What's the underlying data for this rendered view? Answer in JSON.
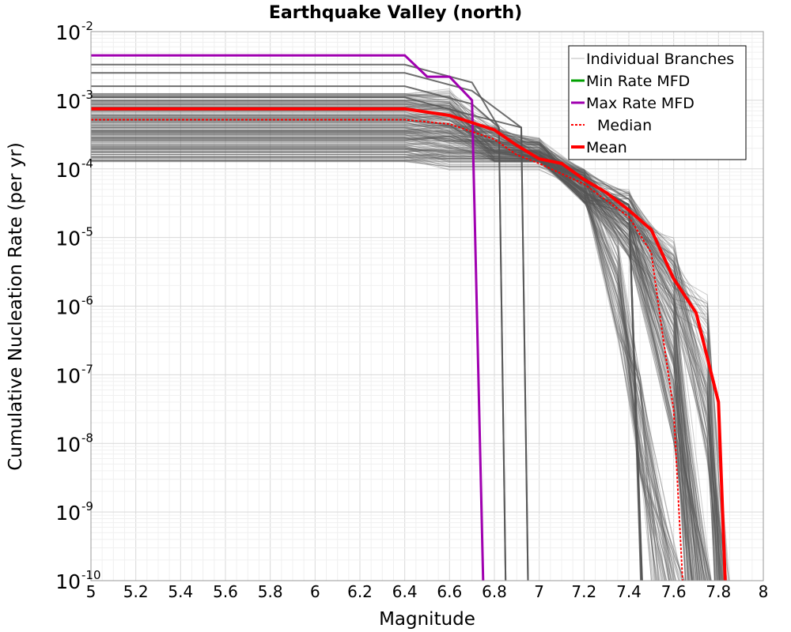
{
  "chart_data": {
    "type": "line",
    "title": "Earthquake Valley (north)",
    "xlabel": "Magnitude",
    "ylabel": "Cumulative Nucleation Rate (per yr)",
    "xlim": [
      5,
      8
    ],
    "ylim_exponents": [
      -10,
      -2
    ],
    "y_scale": "log",
    "grid": true,
    "legend_position": "top-right",
    "x_ticks": [
      "5",
      "5.2",
      "5.4",
      "5.6",
      "5.8",
      "6",
      "6.2",
      "6.4",
      "6.6",
      "6.8",
      "7",
      "7.2",
      "7.4",
      "7.6",
      "7.8",
      "8"
    ],
    "y_tick_base": "10",
    "y_tick_exponents": [
      "-2",
      "-3",
      "-4",
      "-5",
      "-6",
      "-7",
      "-8",
      "-9",
      "-10"
    ],
    "colors": {
      "branches": "#555555",
      "min": "#00a000",
      "max": "#a000b0",
      "median": "#ff0000",
      "mean": "#ff0000"
    },
    "legend": [
      {
        "label": "Individual Branches",
        "key": "branches"
      },
      {
        "label": "Min Rate MFD",
        "key": "min"
      },
      {
        "label": "Max Rate MFD",
        "key": "max"
      },
      {
        "label": "Median",
        "key": "median"
      },
      {
        "label": "Mean",
        "key": "mean"
      }
    ],
    "series": [
      {
        "name": "Max Rate MFD",
        "key": "max",
        "x": [
          5.0,
          6.4,
          6.5,
          6.6,
          6.7,
          6.75
        ],
        "y": [
          0.0045,
          0.0045,
          0.0022,
          0.0022,
          0.001,
          1e-10
        ]
      },
      {
        "name": "Mean",
        "key": "mean",
        "x": [
          5.0,
          6.4,
          6.6,
          6.8,
          6.9,
          7.0,
          7.1,
          7.2,
          7.3,
          7.4,
          7.5,
          7.6,
          7.7,
          7.8,
          7.83
        ],
        "y": [
          0.00075,
          0.00075,
          0.0006,
          0.00037,
          0.00022,
          0.00014,
          0.00012,
          7e-05,
          4.5e-05,
          2.5e-05,
          1.3e-05,
          2.5e-06,
          8e-07,
          4e-08,
          1e-10
        ]
      },
      {
        "name": "Median",
        "key": "median",
        "x": [
          5.0,
          6.4,
          6.6,
          6.8,
          6.9,
          7.0,
          7.2,
          7.4,
          7.5,
          7.55,
          7.6,
          7.64
        ],
        "y": [
          0.00052,
          0.00052,
          0.00045,
          0.00027,
          0.00016,
          0.00012,
          6e-05,
          2e-05,
          6e-06,
          4e-07,
          3e-08,
          1e-10
        ]
      }
    ]
  }
}
